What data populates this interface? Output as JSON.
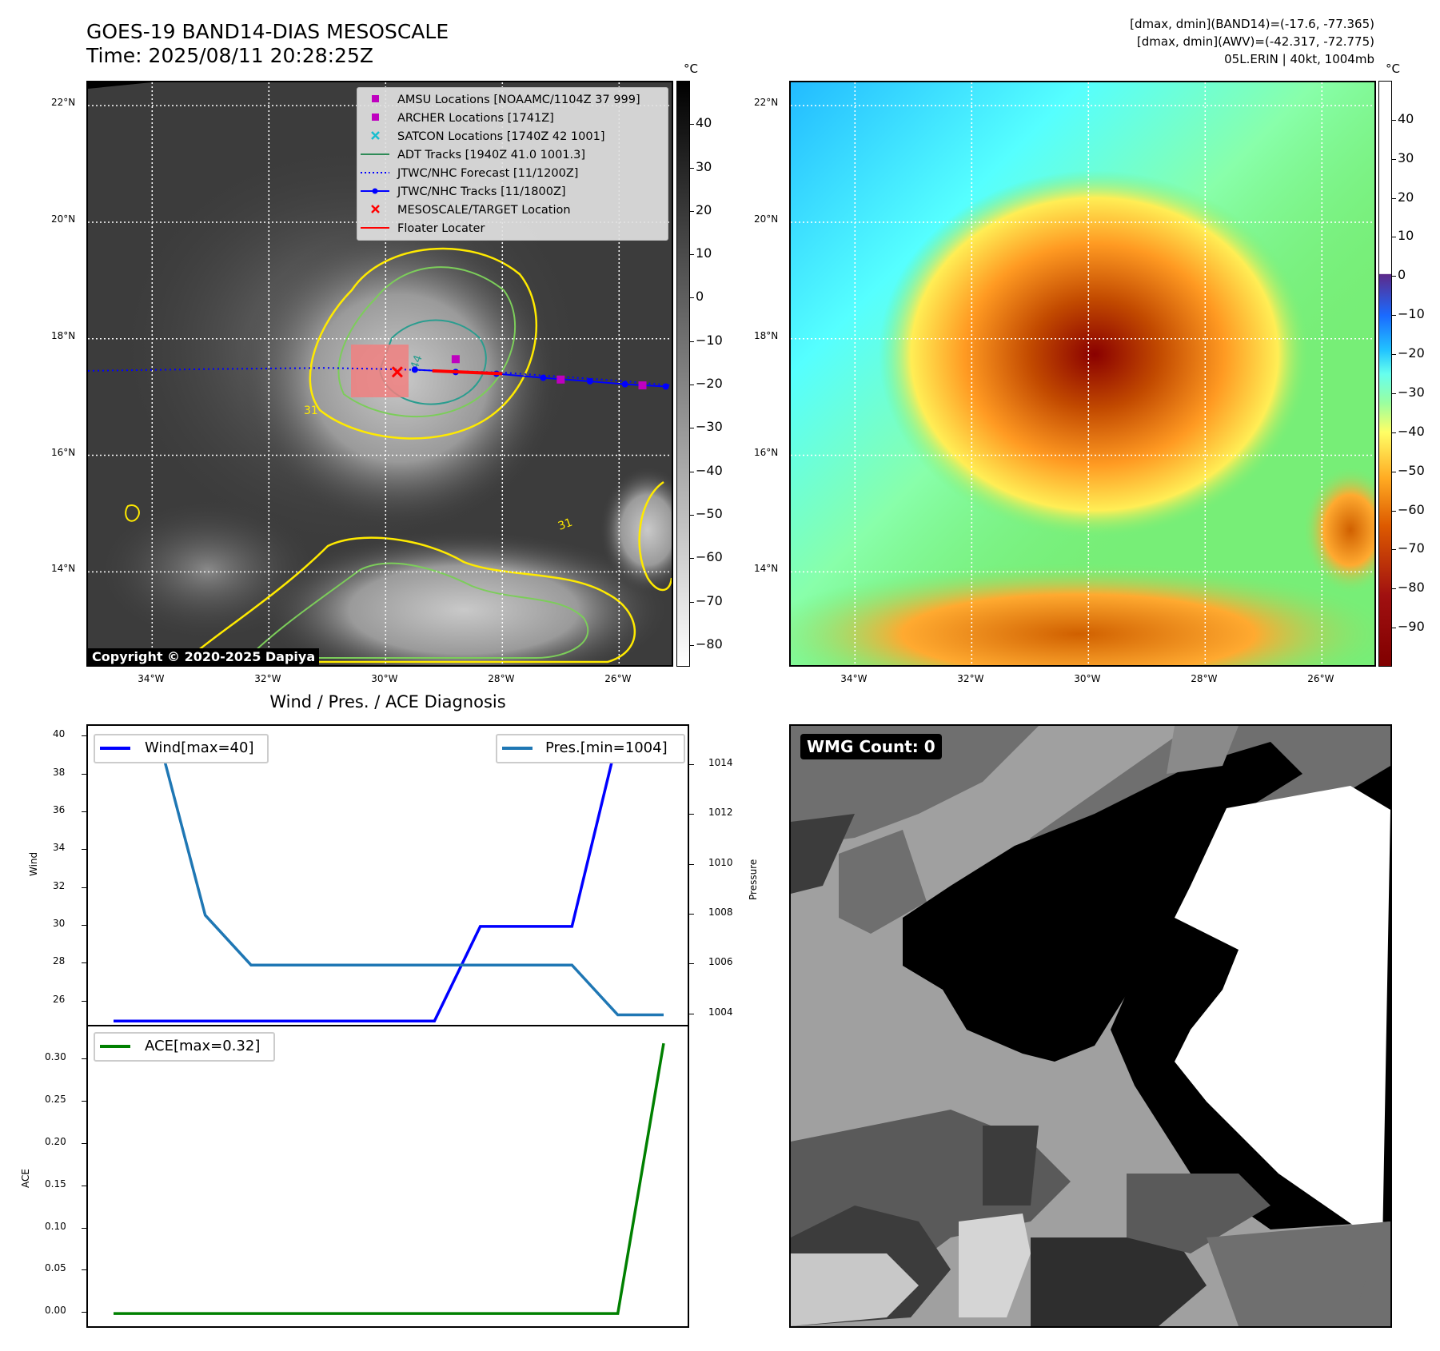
{
  "header": {
    "title_line1": "GOES-19 BAND14-DIAS MESOSCALE",
    "title_line2": "Time: 2025/08/11 20:28:25Z",
    "info_line1": "[dmax, dmin](BAND14)=(-17.6, -77.365)",
    "info_line2": "[dmax, dmin](AWV)=(-42.317, -72.775)",
    "info_line3": "05L.ERIN | 40kt, 1004mb"
  },
  "map_axes": {
    "lat_ticks": [
      "22°N",
      "20°N",
      "18°N",
      "16°N",
      "14°N"
    ],
    "lat_values": [
      22,
      20,
      18,
      16,
      14
    ],
    "lon_ticks": [
      "34°W",
      "32°W",
      "30°W",
      "28°W",
      "26°W"
    ],
    "lon_values": [
      -34,
      -32,
      -30,
      -28,
      -26
    ],
    "lat_range": [
      12.4,
      22.4
    ],
    "lon_range": [
      -35.1,
      -25.1
    ]
  },
  "colorbar_band14": {
    "unit": "°C",
    "ticks": [
      "40",
      "30",
      "20",
      "10",
      "0",
      "−10",
      "−20",
      "−30",
      "−40",
      "−50",
      "−60",
      "−70",
      "−80"
    ],
    "tick_values": [
      40,
      30,
      20,
      10,
      0,
      -10,
      -20,
      -30,
      -40,
      -50,
      -60,
      -70,
      -80
    ],
    "range": [
      -85,
      50
    ]
  },
  "colorbar_awv": {
    "unit": "°C",
    "ticks": [
      "40",
      "30",
      "20",
      "10",
      "0",
      "−10",
      "−20",
      "−30",
      "−40",
      "−50",
      "−60",
      "−70",
      "−80",
      "−90"
    ],
    "tick_values": [
      40,
      30,
      20,
      10,
      0,
      -10,
      -20,
      -30,
      -40,
      -50,
      -60,
      -70,
      -80,
      -90
    ],
    "range": [
      -100,
      50
    ]
  },
  "legend": {
    "items": [
      "AMSU Locations [NOAAMC/1104Z 37 999]",
      "ARCHER Locations [1741Z]",
      "SATCON Locations [1740Z 42 1001]",
      "ADT Tracks [1940Z 41.0 1001.3]",
      "JTWC/NHC Forecast [11/1200Z]",
      "JTWC/NHC Tracks [11/1800Z]",
      "MESOSCALE/TARGET Location",
      "Floater Locater"
    ],
    "colors": [
      "#bf00bf",
      "#bf00bf",
      "#17becf",
      "#2e8b57",
      "#0000ff",
      "#0000ff",
      "#ff0000",
      "#ff0000"
    ]
  },
  "copyright": "Copyright © 2020-2025 Dapiya",
  "contour_labels": [
    "44",
    "31",
    "31",
    "31"
  ],
  "wmg": {
    "label": "WMG Count: 0"
  },
  "diagnosis": {
    "title": "Wind / Pres. / ACE Diagnosis",
    "wind_ylabel": "Wind",
    "pres_ylabel": "Pressure",
    "ace_ylabel": "ACE",
    "wind_ticks": [
      "40",
      "38",
      "36",
      "34",
      "32",
      "30",
      "28",
      "26"
    ],
    "pres_ticks": [
      "1014",
      "1012",
      "1010",
      "1008",
      "1006",
      "1004"
    ],
    "ace_ticks": [
      "0.30",
      "0.25",
      "0.20",
      "0.15",
      "0.10",
      "0.05",
      "0.00"
    ],
    "wind_legend": "Wind[max=40]",
    "pres_legend": "Pres.[min=1004]",
    "ace_legend": "ACE[max=0.32]"
  },
  "chart_data": {
    "type": "line",
    "title": "Wind / Pres. / ACE Diagnosis",
    "x": [
      0,
      1,
      2,
      3,
      4,
      5,
      6,
      7,
      8,
      9,
      10,
      11,
      12
    ],
    "series": [
      {
        "name": "Wind[max=40]",
        "axis": "wind",
        "color": "#0000ff",
        "values": [
          25,
          25,
          25,
          25,
          25,
          25,
          25,
          25,
          30,
          30,
          30,
          40,
          40
        ]
      },
      {
        "name": "Pres.[min=1004]",
        "axis": "pressure",
        "color": "#1f77b4",
        "values": [
          1015,
          1015,
          1008,
          1006,
          1006,
          1006,
          1006,
          1006,
          1006,
          1006,
          1006,
          1004,
          1004
        ]
      },
      {
        "name": "ACE[max=0.32]",
        "axis": "ace",
        "color": "#008000",
        "values": [
          0,
          0,
          0,
          0,
          0,
          0,
          0,
          0,
          0,
          0,
          0,
          0,
          0.32
        ]
      }
    ],
    "wind_ylim": [
      24.8,
      40.6
    ],
    "pressure_ylim": [
      1003.6,
      1015.6
    ],
    "ace_ylim": [
      -0.015,
      0.34
    ],
    "track": {
      "forecast_lon": [
        -35.1,
        -33.0,
        -31.0,
        -30.0,
        -29.0,
        -28.0,
        -27.0,
        -26.0,
        -25.1
      ],
      "forecast_lat": [
        17.45,
        17.48,
        17.5,
        17.48,
        17.45,
        17.42,
        17.35,
        17.28,
        17.2
      ],
      "best_lon": [
        -29.5,
        -28.8,
        -28.1,
        -27.3,
        -26.5,
        -25.9,
        -25.2
      ],
      "best_lat": [
        17.47,
        17.43,
        17.4,
        17.33,
        17.27,
        17.22,
        17.18
      ],
      "archer_lon": [
        -28.8,
        -27.0,
        -25.6
      ],
      "archer_lat": [
        17.65,
        17.3,
        17.2
      ],
      "target_lon": -29.8,
      "target_lat": 17.43
    }
  }
}
